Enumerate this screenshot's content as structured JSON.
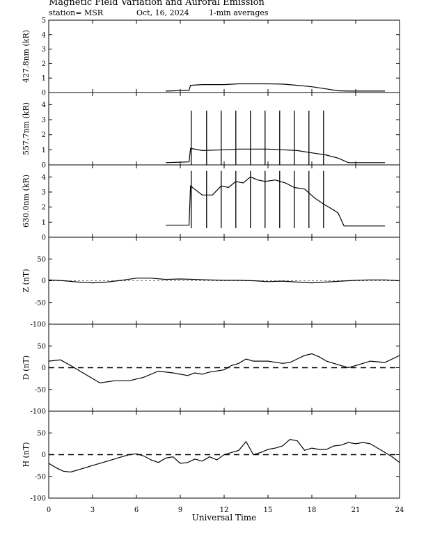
{
  "header": {
    "title": "Magnetic Field Variation and Auroral Emission",
    "station": "station= MSR",
    "date": "Oct, 16, 2024",
    "averaging": "1-min averages"
  },
  "chart_data": [
    {
      "type": "line",
      "ylabel": "427.8nm (kR)",
      "ylim": [
        0,
        5
      ],
      "yticks": [
        0,
        1,
        2,
        3,
        4,
        5
      ],
      "tick_labels": [
        "0",
        "1",
        "2",
        "3",
        "4",
        "5"
      ],
      "series": [
        {
          "x": [
            8,
            9.6,
            9.7,
            10.5,
            12,
            13,
            14,
            15,
            16,
            17,
            18,
            19,
            19.8,
            20.5,
            22,
            23
          ],
          "values": [
            0.1,
            0.15,
            0.5,
            0.55,
            0.55,
            0.6,
            0.6,
            0.6,
            0.58,
            0.5,
            0.4,
            0.25,
            0.12,
            0.1,
            0.1,
            0.1
          ]
        }
      ]
    },
    {
      "type": "line",
      "ylabel": "557.7nm (kR)",
      "ylim": [
        0,
        4.8
      ],
      "yticks": [
        0,
        1,
        2,
        3,
        4
      ],
      "tick_labels": [
        "0",
        "1",
        "2",
        "3",
        "4"
      ],
      "series": [
        {
          "x": [
            8,
            9.6,
            9.7,
            10.5,
            12,
            13,
            14,
            15,
            16,
            17,
            18,
            19,
            19.8,
            20.5,
            22,
            23
          ],
          "values": [
            0.15,
            0.2,
            1.1,
            0.95,
            1.0,
            1.05,
            1.05,
            1.05,
            1.0,
            0.95,
            0.8,
            0.65,
            0.45,
            0.15,
            0.15,
            0.15
          ]
        }
      ],
      "spikes": {
        "x": [
          9.75,
          10.8,
          11.8,
          12.8,
          13.8,
          14.8,
          15.8,
          16.8,
          17.8,
          18.8
        ],
        "value": 3.6
      }
    },
    {
      "type": "line",
      "ylabel": "630.0nm (kR)",
      "ylim": [
        0,
        4.8
      ],
      "yticks": [
        0,
        1,
        2,
        3,
        4
      ],
      "tick_labels": [
        "0",
        "1",
        "2",
        "3",
        "4"
      ],
      "series": [
        {
          "x": [
            8,
            9.6,
            9.7,
            10.5,
            11.2,
            11.8,
            12.3,
            12.8,
            13.3,
            13.8,
            14.3,
            14.8,
            15.5,
            16.2,
            16.8,
            17.5,
            18.2,
            18.8,
            19.5,
            19.8,
            20.2,
            22,
            23
          ],
          "values": [
            0.8,
            0.8,
            3.4,
            2.8,
            2.8,
            3.4,
            3.3,
            3.7,
            3.6,
            4.0,
            3.8,
            3.7,
            3.8,
            3.6,
            3.3,
            3.2,
            2.6,
            2.2,
            1.8,
            1.6,
            0.75,
            0.75,
            0.75
          ]
        }
      ],
      "spikes": {
        "x": [
          9.75,
          10.8,
          11.8,
          12.8,
          13.8,
          14.8,
          15.8,
          16.8,
          17.8,
          18.8
        ],
        "low": 0.6,
        "high": 4.4
      }
    },
    {
      "type": "line",
      "ylabel": "Z (nT)",
      "ylim": [
        -100,
        100
      ],
      "yticks": [
        -100,
        -50,
        0,
        50
      ],
      "tick_labels": [
        "-100",
        "-50",
        "0",
        "50"
      ],
      "series": [
        {
          "x": [
            0,
            1,
            2,
            3,
            4,
            5,
            6,
            7,
            8,
            9,
            10,
            11,
            12,
            13,
            14,
            15,
            16,
            17,
            18,
            19,
            20,
            21,
            22,
            23,
            24
          ],
          "values": [
            2,
            0,
            -3,
            -5,
            -3,
            1,
            6,
            6,
            3,
            4,
            3,
            2,
            1,
            1,
            0,
            -2,
            -1,
            -3,
            -5,
            -3,
            -1,
            1,
            2,
            2,
            0
          ]
        }
      ]
    },
    {
      "type": "line",
      "ylabel": "D (nT)",
      "ylim": [
        -100,
        100
      ],
      "yticks": [
        -100,
        -50,
        0,
        50
      ],
      "tick_labels": [
        "-100",
        "-50",
        "0",
        "50"
      ],
      "series": [
        {
          "x": [
            0,
            0.8,
            1.5,
            2.5,
            3.5,
            4.5,
            5.5,
            6.5,
            7.5,
            8.5,
            9,
            9.5,
            10,
            10.5,
            11,
            12,
            12.5,
            13,
            13.5,
            14,
            15,
            16,
            16.5,
            17,
            17.5,
            18,
            18.5,
            19,
            19.5,
            20,
            20.5,
            21,
            22,
            23,
            24
          ],
          "values": [
            15,
            18,
            5,
            -15,
            -35,
            -30,
            -30,
            -22,
            -8,
            -12,
            -15,
            -18,
            -12,
            -15,
            -10,
            -5,
            5,
            10,
            20,
            15,
            15,
            10,
            12,
            20,
            28,
            32,
            25,
            15,
            10,
            5,
            0,
            5,
            15,
            12,
            28
          ]
        }
      ]
    },
    {
      "type": "line",
      "ylabel": "H (nT)",
      "ylim": [
        -100,
        100
      ],
      "yticks": [
        -100,
        -50,
        0,
        50
      ],
      "tick_labels": [
        "-100",
        "-50",
        "0",
        "50"
      ],
      "series": [
        {
          "x": [
            0,
            0.5,
            1,
            1.5,
            2,
            3,
            4,
            5,
            5.5,
            6,
            6.5,
            7,
            7.5,
            8,
            8.5,
            9,
            9.5,
            10,
            10.5,
            11,
            11.5,
            12,
            12.5,
            13,
            13.5,
            14,
            14.5,
            15,
            15.5,
            16,
            16.5,
            17,
            17.5,
            18,
            18.5,
            19,
            19.5,
            20,
            20.5,
            21,
            21.5,
            22,
            22.5,
            23,
            23.5,
            24
          ],
          "values": [
            -20,
            -30,
            -38,
            -40,
            -35,
            -25,
            -15,
            -5,
            0,
            2,
            -3,
            -12,
            -18,
            -8,
            -5,
            -20,
            -18,
            -10,
            -15,
            -5,
            -12,
            0,
            5,
            10,
            30,
            0,
            5,
            12,
            15,
            20,
            35,
            32,
            10,
            15,
            12,
            12,
            20,
            22,
            28,
            25,
            28,
            25,
            15,
            5,
            -5,
            -18
          ]
        }
      ]
    }
  ],
  "shared_x": {
    "xlim": [
      0,
      24
    ],
    "xticks": [
      0,
      3,
      6,
      9,
      12,
      15,
      18,
      21,
      24
    ],
    "tick_labels": [
      "0",
      "3",
      "6",
      "9",
      "12",
      "15",
      "18",
      "21",
      "24"
    ],
    "xlabel": "Universal Time"
  }
}
